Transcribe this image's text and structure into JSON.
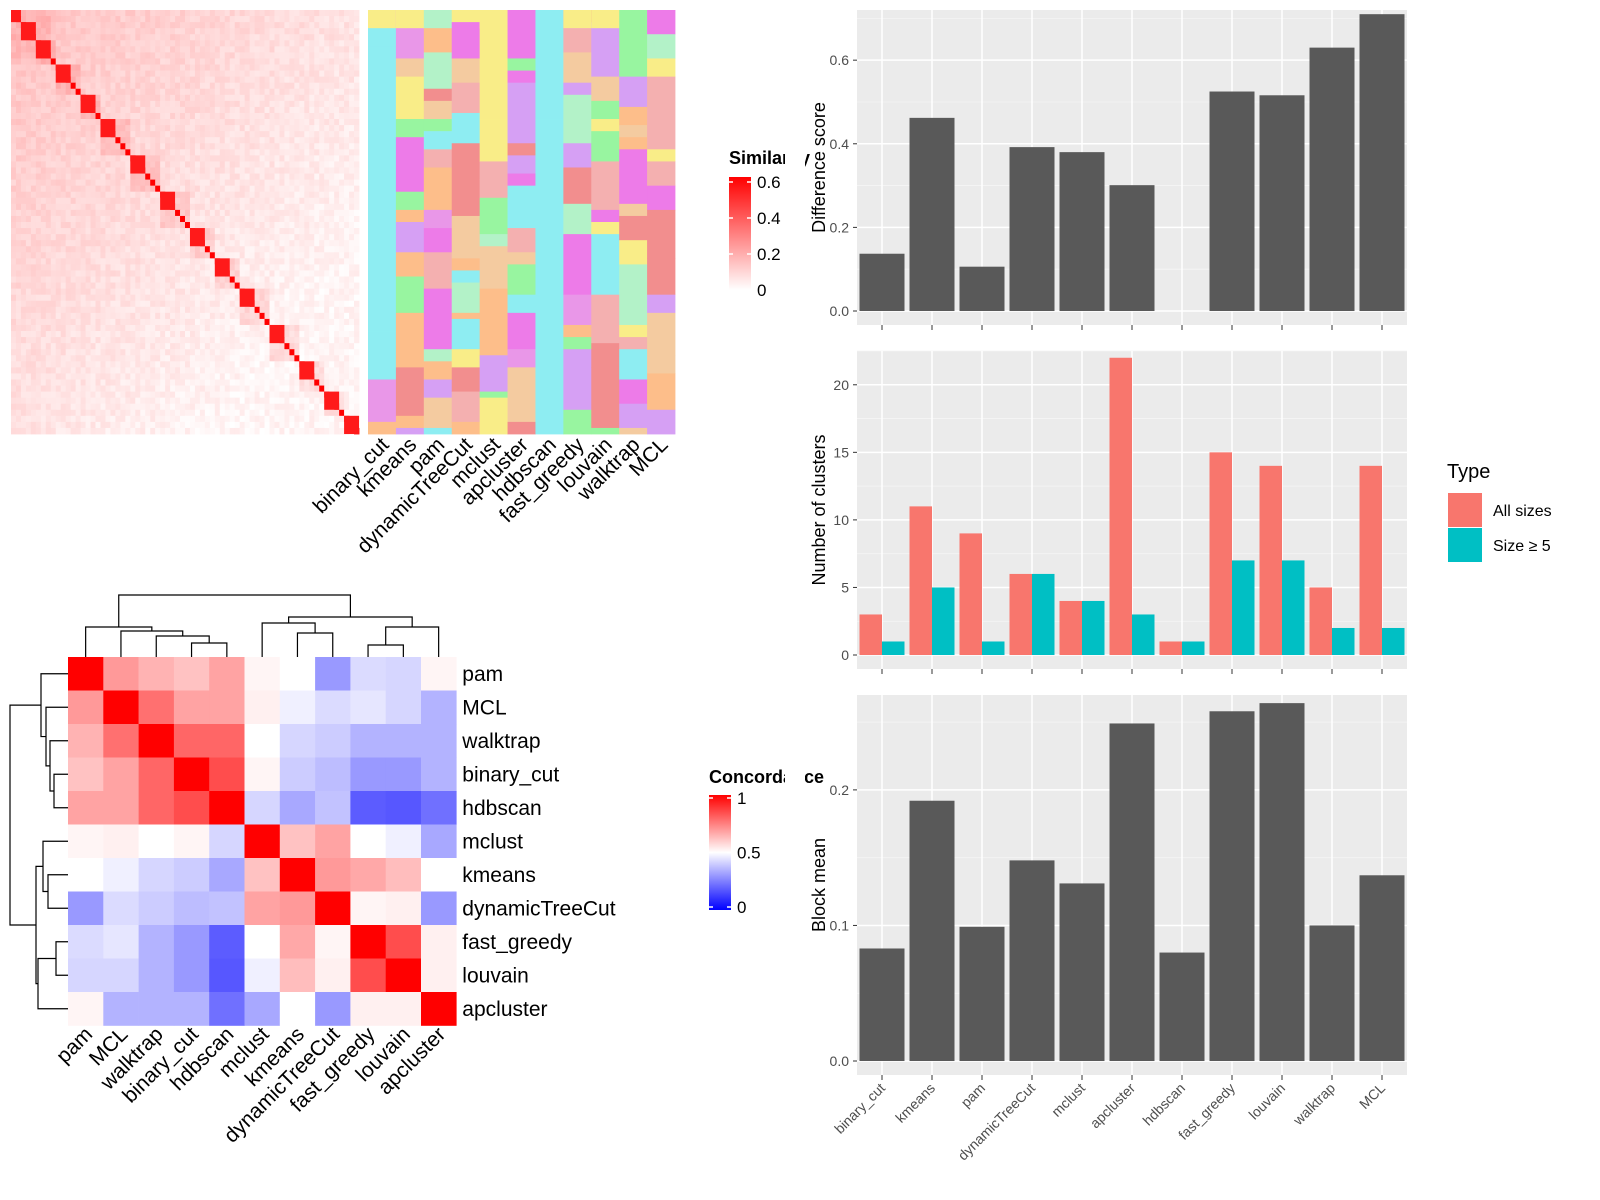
{
  "chart_data": [
    {
      "type": "heatmap",
      "legend_title": "Similarity",
      "legend_ticks": [
        "0",
        "0.2",
        "0.4",
        "0.6"
      ],
      "legend_range": [
        0,
        0.6
      ],
      "n_items": 70,
      "colors": {
        "high": "#ff0000",
        "low": "#ffffff"
      }
    },
    {
      "type": "heatmap",
      "columns": [
        "binary_cut",
        "kmeans",
        "pam",
        "dynamicTreeCut",
        "mclust",
        "apcluster",
        "hdbscan",
        "fast_greedy",
        "louvain",
        "walktrap",
        "MCL"
      ],
      "palette": [
        "#8eedf2",
        "#f9ed88",
        "#f28e8e",
        "#f4cba0",
        "#98f5a0",
        "#e997e8",
        "#f4b0b0",
        "#d6a0f4",
        "#b3f2c8",
        "#fdbe8a",
        "#ed7be8"
      ]
    },
    {
      "type": "heatmap",
      "legend_title": "Concordance",
      "legend_ticks": [
        "0",
        "0.5",
        "1"
      ],
      "rows": [
        "pam",
        "MCL",
        "walktrap",
        "binary_cut",
        "hdbscan",
        "mclust",
        "kmeans",
        "dynamicTreeCut",
        "fast_greedy",
        "louvain",
        "apcluster"
      ],
      "columns": [
        "pam",
        "MCL",
        "walktrap",
        "binary_cut",
        "hdbscan",
        "mclust",
        "kmeans",
        "dynamicTreeCut",
        "fast_greedy",
        "louvain",
        "apcluster"
      ],
      "values": [
        [
          1.0,
          0.7,
          0.65,
          0.62,
          0.68,
          0.52,
          0.5,
          0.3,
          0.43,
          0.42,
          0.52
        ],
        [
          0.7,
          1.0,
          0.78,
          0.68,
          0.68,
          0.53,
          0.47,
          0.43,
          0.45,
          0.42,
          0.35
        ],
        [
          0.65,
          0.78,
          1.0,
          0.8,
          0.8,
          0.5,
          0.42,
          0.4,
          0.35,
          0.35,
          0.35
        ],
        [
          0.62,
          0.68,
          0.8,
          1.0,
          0.85,
          0.52,
          0.4,
          0.37,
          0.3,
          0.3,
          0.35
        ],
        [
          0.68,
          0.68,
          0.8,
          0.85,
          1.0,
          0.42,
          0.33,
          0.38,
          0.18,
          0.17,
          0.22
        ],
        [
          0.52,
          0.53,
          0.5,
          0.52,
          0.42,
          1.0,
          0.62,
          0.68,
          0.5,
          0.47,
          0.33
        ],
        [
          0.5,
          0.47,
          0.42,
          0.4,
          0.33,
          0.62,
          1.0,
          0.7,
          0.67,
          0.63,
          0.5
        ],
        [
          0.3,
          0.43,
          0.4,
          0.37,
          0.38,
          0.68,
          0.7,
          1.0,
          0.52,
          0.53,
          0.3
        ],
        [
          0.43,
          0.45,
          0.35,
          0.3,
          0.18,
          0.5,
          0.67,
          0.52,
          1.0,
          0.85,
          0.53
        ],
        [
          0.42,
          0.42,
          0.35,
          0.3,
          0.17,
          0.47,
          0.63,
          0.53,
          0.85,
          1.0,
          0.53
        ],
        [
          0.52,
          0.35,
          0.35,
          0.35,
          0.22,
          0.33,
          0.5,
          0.3,
          0.53,
          0.53,
          1.0
        ]
      ],
      "colors": {
        "low": "#0000ff",
        "mid": "#ffffff",
        "high": "#ff0000"
      }
    },
    {
      "type": "bar",
      "categories": [
        "binary_cut",
        "kmeans",
        "pam",
        "dynamicTreeCut",
        "mclust",
        "apcluster",
        "hdbscan",
        "fast_greedy",
        "louvain",
        "walktrap",
        "MCL"
      ],
      "values": [
        0.137,
        0.462,
        0.106,
        0.392,
        0.38,
        0.301,
        null,
        0.525,
        0.516,
        0.63,
        0.71
      ],
      "ylabel": "Difference score",
      "ylim": [
        0,
        0.72
      ],
      "yticks": [
        0.0,
        0.2,
        0.4,
        0.6
      ],
      "ytick_labels": [
        "0.0",
        "0.2",
        "0.4",
        "0.6"
      ],
      "color": "#595959"
    },
    {
      "type": "bar",
      "categories": [
        "binary_cut",
        "kmeans",
        "pam",
        "dynamicTreeCut",
        "mclust",
        "apcluster",
        "hdbscan",
        "fast_greedy",
        "louvain",
        "walktrap",
        "MCL"
      ],
      "series": [
        {
          "name": "All sizes",
          "values": [
            3,
            11,
            9,
            6,
            4,
            22,
            1,
            15,
            14,
            5,
            14
          ],
          "color": "#f8766d"
        },
        {
          "name": "Size ≥ 5",
          "values": [
            1,
            5,
            1,
            6,
            4,
            3,
            1,
            7,
            7,
            2,
            2
          ],
          "color": "#00bfc4"
        }
      ],
      "ylabel": "Number of clusters",
      "ylim": [
        0,
        22.5
      ],
      "yticks": [
        0,
        5,
        10,
        15,
        20
      ],
      "ytick_labels": [
        "0",
        "5",
        "10",
        "15",
        "20"
      ],
      "legend_title": "Type",
      "legend_position": "right"
    },
    {
      "type": "bar",
      "categories": [
        "binary_cut",
        "kmeans",
        "pam",
        "dynamicTreeCut",
        "mclust",
        "apcluster",
        "hdbscan",
        "fast_greedy",
        "louvain",
        "walktrap",
        "MCL"
      ],
      "values": [
        0.083,
        0.192,
        0.099,
        0.148,
        0.131,
        0.249,
        0.08,
        0.258,
        0.264,
        0.1,
        0.137
      ],
      "ylabel": "Block mean",
      "ylim": [
        0,
        0.27
      ],
      "yticks": [
        0.0,
        0.1,
        0.2
      ],
      "ytick_labels": [
        "0.0",
        "0.1",
        "0.2"
      ],
      "color": "#595959"
    }
  ]
}
